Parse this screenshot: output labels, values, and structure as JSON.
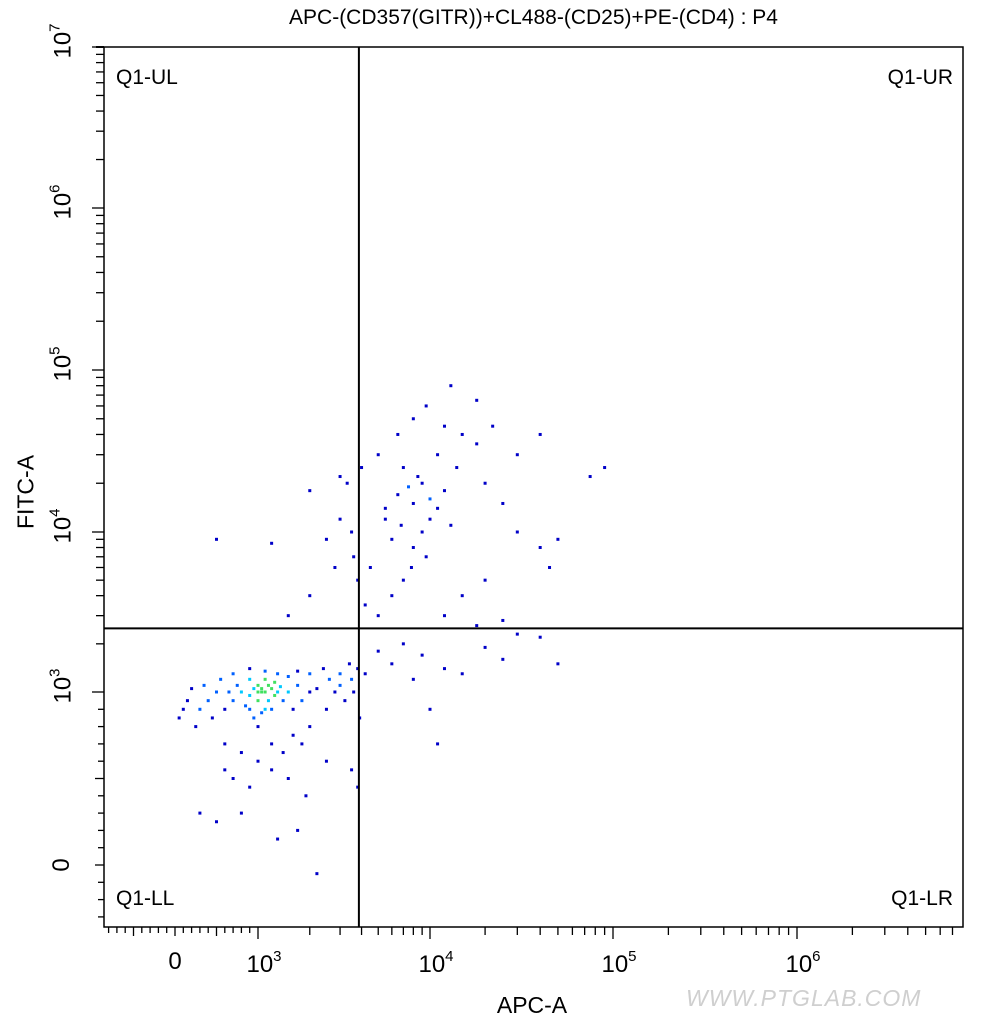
{
  "chart_data": {
    "type": "scatter",
    "title": "APC-(CD357(GITR))+CL488-(CD25)+PE-(CD4) : P4",
    "xlabel": "APC-A",
    "ylabel": "FITC-A",
    "x_scale": "biexponential",
    "y_scale": "biexponential",
    "xlim": [
      -1000,
      8000000
    ],
    "ylim": [
      -500,
      10000000
    ],
    "x_ticks": [
      {
        "base": "0",
        "exp": ""
      },
      {
        "base": "10",
        "exp": "3"
      },
      {
        "base": "10",
        "exp": "4"
      },
      {
        "base": "10",
        "exp": "5"
      },
      {
        "base": "10",
        "exp": "6"
      }
    ],
    "y_ticks": [
      {
        "base": "0",
        "exp": ""
      },
      {
        "base": "10",
        "exp": "3"
      },
      {
        "base": "10",
        "exp": "4"
      },
      {
        "base": "10",
        "exp": "5"
      },
      {
        "base": "10",
        "exp": "6"
      },
      {
        "base": "10",
        "exp": "7"
      }
    ],
    "quadrant_gate": {
      "x": 3860,
      "y": 2500
    },
    "quadrants": {
      "ul": "Q1-UL",
      "ur": "Q1-UR",
      "ll": "Q1-LL",
      "lr": "Q1-LR"
    },
    "color_scale": [
      "#0000c8",
      "#0060ff",
      "#00c8ff",
      "#40e060",
      "#ffff00",
      "#ff0000"
    ],
    "points": [
      [
        1000,
        950
      ],
      [
        1100,
        1000
      ],
      [
        900,
        980
      ],
      [
        1200,
        900
      ],
      [
        950,
        1050
      ],
      [
        1050,
        880
      ],
      [
        1150,
        1100
      ],
      [
        850,
        920
      ],
      [
        1300,
        1000
      ],
      [
        800,
        1000
      ],
      [
        1000,
        800
      ],
      [
        1100,
        1200
      ],
      [
        700,
        950
      ],
      [
        1400,
        950
      ],
      [
        1250,
        1150
      ],
      [
        900,
        1200
      ],
      [
        1000,
        1100
      ],
      [
        1200,
        1050
      ],
      [
        950,
        850
      ],
      [
        1050,
        1000
      ],
      [
        1100,
        900
      ],
      [
        1000,
        1000
      ],
      [
        1150,
        950
      ],
      [
        1050,
        1050
      ],
      [
        900,
        900
      ],
      [
        1250,
        980
      ],
      [
        1350,
        1080
      ],
      [
        750,
        1100
      ],
      [
        650,
        1000
      ],
      [
        600,
        900
      ],
      [
        1500,
        1000
      ],
      [
        1600,
        900
      ],
      [
        1700,
        1100
      ],
      [
        1800,
        950
      ],
      [
        2000,
        1000
      ],
      [
        2200,
        1050
      ],
      [
        2500,
        900
      ],
      [
        2800,
        1000
      ],
      [
        3000,
        1100
      ],
      [
        3200,
        950
      ],
      [
        3500,
        1200
      ],
      [
        500,
        1000
      ],
      [
        450,
        850
      ],
      [
        400,
        950
      ],
      [
        350,
        1100
      ],
      [
        300,
        900
      ],
      [
        550,
        1200
      ],
      [
        600,
        700
      ],
      [
        800,
        650
      ],
      [
        1000,
        600
      ],
      [
        1200,
        700
      ],
      [
        1400,
        650
      ],
      [
        1600,
        750
      ],
      [
        1800,
        700
      ],
      [
        2000,
        800
      ],
      [
        700,
        1300
      ],
      [
        900,
        1400
      ],
      [
        1100,
        1350
      ],
      [
        1300,
        1300
      ],
      [
        1500,
        1250
      ],
      [
        1700,
        1350
      ],
      [
        2000,
        1300
      ],
      [
        2400,
        1400
      ],
      [
        2600,
        1200
      ],
      [
        3000,
        1300
      ],
      [
        3400,
        1500
      ],
      [
        3800,
        1400
      ],
      [
        3600,
        1000
      ],
      [
        3900,
        850
      ],
      [
        4200,
        1300
      ],
      [
        250,
        800
      ],
      [
        200,
        1050
      ],
      [
        150,
        950
      ],
      [
        100,
        900
      ],
      [
        50,
        850
      ],
      [
        700,
        500
      ],
      [
        900,
        450
      ],
      [
        1200,
        550
      ],
      [
        1500,
        500
      ],
      [
        600,
        550
      ],
      [
        800,
        300
      ],
      [
        500,
        250
      ],
      [
        300,
        300
      ],
      [
        1300,
        150
      ],
      [
        1700,
        200
      ],
      [
        2200,
        -50
      ],
      [
        3500,
        550
      ],
      [
        3800,
        450
      ],
      [
        2500,
        600
      ],
      [
        1900,
        400
      ],
      [
        5000,
        3000
      ],
      [
        6000,
        4000
      ],
      [
        7000,
        5000
      ],
      [
        8000,
        8000
      ],
      [
        9000,
        10000
      ],
      [
        10000,
        12000
      ],
      [
        8000,
        15000
      ],
      [
        12000,
        18000
      ],
      [
        9000,
        20000
      ],
      [
        7000,
        25000
      ],
      [
        11000,
        30000
      ],
      [
        14000,
        25000
      ],
      [
        6000,
        9000
      ],
      [
        5500,
        12000
      ],
      [
        4500,
        6000
      ],
      [
        4200,
        3500
      ],
      [
        3800,
        5000
      ],
      [
        3600,
        7000
      ],
      [
        3500,
        10000
      ],
      [
        3300,
        20000
      ],
      [
        4000,
        25000
      ],
      [
        5000,
        30000
      ],
      [
        6500,
        40000
      ],
      [
        8000,
        50000
      ],
      [
        9500,
        60000
      ],
      [
        12000,
        45000
      ],
      [
        15000,
        40000
      ],
      [
        18000,
        35000
      ],
      [
        20000,
        20000
      ],
      [
        25000,
        15000
      ],
      [
        30000,
        10000
      ],
      [
        40000,
        8000
      ],
      [
        50000,
        9000
      ],
      [
        45000,
        6000
      ],
      [
        20000,
        5000
      ],
      [
        15000,
        4000
      ],
      [
        12000,
        3000
      ],
      [
        18000,
        2600
      ],
      [
        25000,
        2800
      ],
      [
        30000,
        2300
      ],
      [
        40000,
        2200
      ],
      [
        50000,
        1500
      ],
      [
        13000,
        80000
      ],
      [
        18000,
        65000
      ],
      [
        22000,
        45000
      ],
      [
        30000,
        30000
      ],
      [
        40000,
        40000
      ],
      [
        75000,
        22000
      ],
      [
        90000,
        25000
      ],
      [
        7000,
        2000
      ],
      [
        5000,
        1800
      ],
      [
        6000,
        1500
      ],
      [
        8000,
        1200
      ],
      [
        9000,
        1700
      ],
      [
        10000,
        900
      ],
      [
        12000,
        1400
      ],
      [
        15000,
        1300
      ],
      [
        20000,
        1900
      ],
      [
        25000,
        1600
      ],
      [
        11000,
        700
      ],
      [
        5500,
        14000
      ],
      [
        6500,
        17000
      ],
      [
        7500,
        19000
      ],
      [
        8500,
        22000
      ],
      [
        10000,
        16000
      ],
      [
        11000,
        14000
      ],
      [
        13000,
        11000
      ],
      [
        9500,
        7000
      ],
      [
        7800,
        6000
      ],
      [
        6800,
        11000
      ],
      [
        3000,
        12000
      ],
      [
        2500,
        9000
      ],
      [
        2000,
        18000
      ],
      [
        3000,
        22000
      ],
      [
        2800,
        6000
      ],
      [
        2000,
        4000
      ],
      [
        1500,
        3000
      ],
      [
        500,
        9000
      ],
      [
        1200,
        8500
      ]
    ]
  },
  "watermark": "WWW.PTGLAB.COM"
}
